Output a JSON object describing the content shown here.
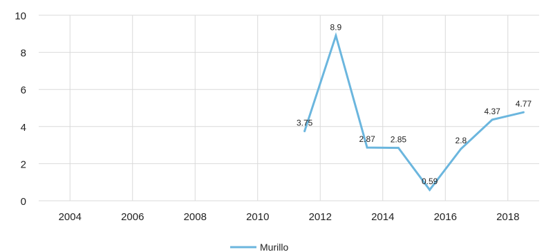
{
  "chart_data": {
    "type": "line",
    "title": "",
    "xlabel": "",
    "ylabel": "",
    "xlim": [
      2003,
      2019
    ],
    "ylim": [
      0,
      10
    ],
    "x_ticks": [
      2004,
      2006,
      2008,
      2010,
      2012,
      2014,
      2016,
      2018
    ],
    "y_ticks": [
      0,
      2,
      4,
      6,
      8,
      10
    ],
    "grid": true,
    "legend_position": "bottom-center",
    "series": [
      {
        "name": "Murillo",
        "color": "#6BB6DE",
        "points": [
          {
            "x": 2011.5,
            "y": 3.75,
            "label": "3.75"
          },
          {
            "x": 2012.5,
            "y": 8.9,
            "label": "8.9"
          },
          {
            "x": 2013.5,
            "y": 2.87,
            "label": "2.87"
          },
          {
            "x": 2014.5,
            "y": 2.85,
            "label": "2.85"
          },
          {
            "x": 2015.5,
            "y": 0.59,
            "label": "0.59"
          },
          {
            "x": 2016.5,
            "y": 2.8,
            "label": "2.8"
          },
          {
            "x": 2017.5,
            "y": 4.37,
            "label": "4.37"
          },
          {
            "x": 2018.5,
            "y": 4.77,
            "label": "4.77"
          }
        ]
      }
    ]
  }
}
